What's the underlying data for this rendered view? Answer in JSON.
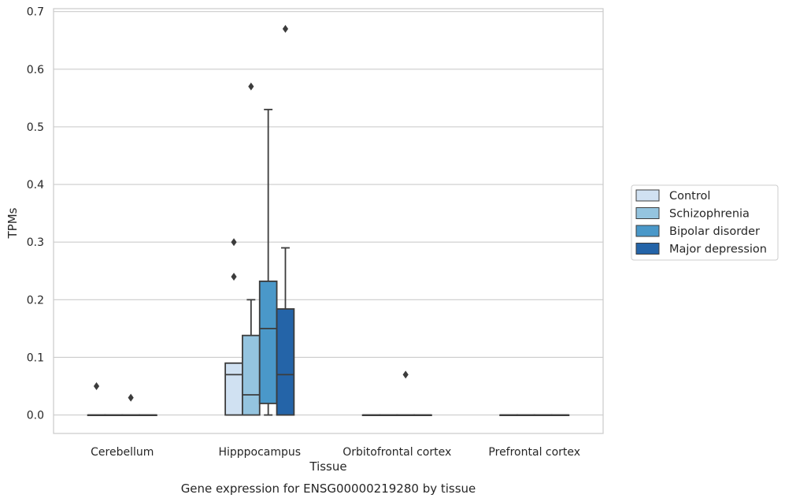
{
  "chart_data": {
    "type": "box",
    "title": "",
    "caption": "Gene expression for ENSG00000219280 by tissue",
    "xlabel": "Tissue",
    "ylabel": "TPMs",
    "ylim": [
      -0.032,
      0.705
    ],
    "yticks": [
      0.0,
      0.1,
      0.2,
      0.3,
      0.4,
      0.5,
      0.6,
      0.7
    ],
    "ytick_labels": [
      "0.0",
      "0.1",
      "0.2",
      "0.3",
      "0.4",
      "0.5",
      "0.6",
      "0.7"
    ],
    "grid": "y",
    "legend_position": "right-outside",
    "categories": [
      "Cerebellum",
      "Hipppocampus",
      "Orbitofrontal cortex",
      "Prefrontal cortex"
    ],
    "series": [
      {
        "name": "Control",
        "color": "#d0e1f2",
        "boxes": [
          {
            "q1": 0,
            "median": 0,
            "q3": 0,
            "whisker_low": 0,
            "whisker_high": 0,
            "outliers": [
              0.05
            ]
          },
          {
            "q1": 0,
            "median": 0.07,
            "q3": 0.09,
            "whisker_low": 0,
            "whisker_high": 0.09,
            "outliers": [
              0.24,
              0.3
            ]
          },
          {
            "q1": 0,
            "median": 0,
            "q3": 0,
            "whisker_low": 0,
            "whisker_high": 0,
            "outliers": []
          },
          {
            "q1": 0,
            "median": 0,
            "q3": 0,
            "whisker_low": 0,
            "whisker_high": 0,
            "outliers": []
          }
        ]
      },
      {
        "name": "Schizophrenia",
        "color": "#94c4df",
        "boxes": [
          {
            "q1": 0,
            "median": 0,
            "q3": 0,
            "whisker_low": 0,
            "whisker_high": 0,
            "outliers": []
          },
          {
            "q1": 0,
            "median": 0.035,
            "q3": 0.138,
            "whisker_low": 0,
            "whisker_high": 0.2,
            "outliers": [
              0.57
            ]
          },
          {
            "q1": 0,
            "median": 0,
            "q3": 0,
            "whisker_low": 0,
            "whisker_high": 0,
            "outliers": []
          },
          {
            "q1": 0,
            "median": 0,
            "q3": 0,
            "whisker_low": 0,
            "whisker_high": 0,
            "outliers": []
          }
        ]
      },
      {
        "name": "Bipolar disorder",
        "color": "#4a98c9",
        "boxes": [
          {
            "q1": 0,
            "median": 0,
            "q3": 0,
            "whisker_low": 0,
            "whisker_high": 0,
            "outliers": [
              0.03
            ]
          },
          {
            "q1": 0.02,
            "median": 0.15,
            "q3": 0.232,
            "whisker_low": 0,
            "whisker_high": 0.53,
            "outliers": []
          },
          {
            "q1": 0,
            "median": 0,
            "q3": 0,
            "whisker_low": 0,
            "whisker_high": 0,
            "outliers": [
              0.07
            ]
          },
          {
            "q1": 0,
            "median": 0,
            "q3": 0,
            "whisker_low": 0,
            "whisker_high": 0,
            "outliers": []
          }
        ]
      },
      {
        "name": "Major depression",
        "color": "#2464a8",
        "boxes": [
          {
            "q1": 0,
            "median": 0,
            "q3": 0,
            "whisker_low": 0,
            "whisker_high": 0,
            "outliers": []
          },
          {
            "q1": 0,
            "median": 0.07,
            "q3": 0.184,
            "whisker_low": 0,
            "whisker_high": 0.29,
            "outliers": [
              0.67
            ]
          },
          {
            "q1": 0,
            "median": 0,
            "q3": 0,
            "whisker_low": 0,
            "whisker_high": 0,
            "outliers": []
          },
          {
            "q1": 0,
            "median": 0,
            "q3": 0,
            "whisker_low": 0,
            "whisker_high": 0,
            "outliers": []
          }
        ]
      }
    ]
  }
}
